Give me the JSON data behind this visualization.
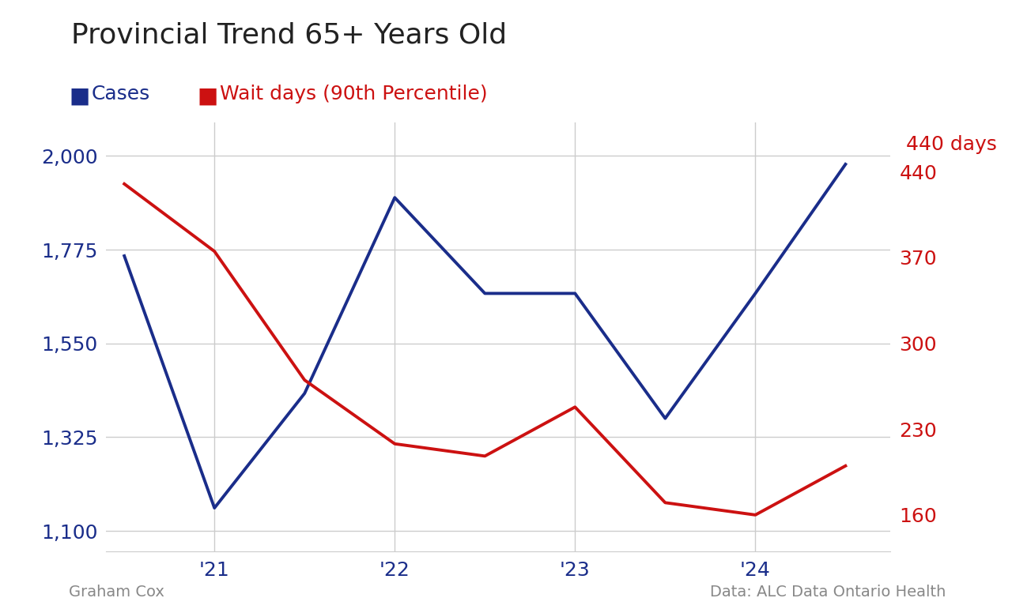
{
  "title": "Provincial Trend 65+ Years Old",
  "cases_label": "Cases",
  "wait_label": "Wait days (90th Percentile)",
  "annotation": "440 days",
  "cases_color": "#1a2d8a",
  "wait_color": "#cc1111",
  "background_color": "#ffffff",
  "cases_x": [
    0,
    1,
    2,
    3,
    4,
    5,
    6,
    7,
    8
  ],
  "cases_y": [
    1760,
    1155,
    1430,
    1900,
    1670,
    1670,
    1370,
    1670,
    1980
  ],
  "wait_x": [
    0,
    1,
    2,
    3,
    4,
    5,
    6,
    7,
    8
  ],
  "wait_y": [
    430,
    375,
    270,
    218,
    208,
    248,
    170,
    160,
    200
  ],
  "x_tick_positions": [
    1,
    3,
    5,
    7
  ],
  "x_tick_labels": [
    "'21",
    "'22",
    "'23",
    "'24"
  ],
  "x_vline_positions": [
    1,
    3,
    5,
    7
  ],
  "left_ylim": [
    1050,
    2080
  ],
  "right_ylim": [
    130,
    480
  ],
  "left_yticks": [
    1100,
    1325,
    1550,
    1775,
    2000
  ],
  "right_yticks": [
    160,
    230,
    300,
    370,
    440
  ],
  "grid_color": "#cccccc",
  "line_width": 2.8,
  "footer_left": "Graham Cox",
  "footer_right": "Data: ALC Data Ontario Health",
  "title_fontsize": 26,
  "legend_fontsize": 18,
  "tick_fontsize": 18,
  "footer_fontsize": 14,
  "xlim": [
    -0.2,
    8.5
  ]
}
